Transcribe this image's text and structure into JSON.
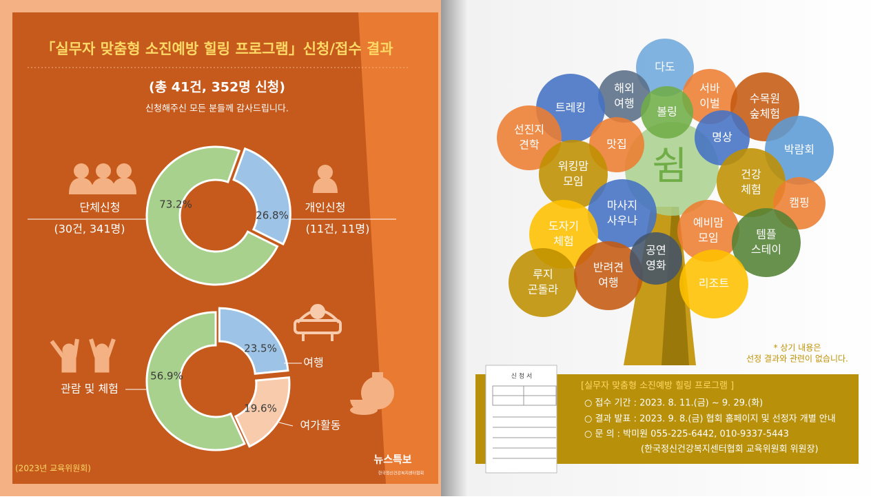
{
  "header": {
    "title": "「실무자 맞춤형 소진예방 힐링 프로그램」신청/접수 결과",
    "total": "(총 41건, 352명 신청)",
    "thanks": "신청해주신 모든 분들께 감사드립니다."
  },
  "chart_data": [
    {
      "type": "donut",
      "categories": [
        "개인신청",
        "단체신청"
      ],
      "values": [
        26.8,
        73.2
      ],
      "value_labels": [
        "26.8%",
        "73.2%"
      ],
      "notes": [
        "(11건, 11명)",
        "(30건, 341명)"
      ],
      "colors": [
        "#9dc3e6",
        "#a9d18e"
      ]
    },
    {
      "type": "donut",
      "categories": [
        "여행",
        "여가활동",
        "관람 및 체험"
      ],
      "values": [
        23.5,
        19.6,
        56.9
      ],
      "value_labels": [
        "23.5%",
        "19.6%",
        "56.9%"
      ],
      "colors": [
        "#9dc3e6",
        "#f8cbad",
        "#a9d18e"
      ]
    }
  ],
  "source": "(2023년 교육위원회)",
  "logo": {
    "name": "뉴스특보",
    "org": "한국정신건강복지센터협회"
  },
  "tree": {
    "center": "쉼",
    "bubbles": [
      {
        "lines": [
          "다도"
        ]
      },
      {
        "lines": [
          "해외",
          "여행"
        ]
      },
      {
        "lines": [
          "서바",
          "이벌"
        ]
      },
      {
        "lines": [
          "트레킹"
        ]
      },
      {
        "lines": [
          "수목원",
          "숲체험"
        ]
      },
      {
        "lines": [
          "볼링"
        ]
      },
      {
        "lines": [
          "선진지",
          "견학"
        ]
      },
      {
        "lines": [
          "맛집"
        ]
      },
      {
        "lines": [
          "명상"
        ]
      },
      {
        "lines": [
          "박람회"
        ]
      },
      {
        "lines": [
          "워킹맘",
          "모임"
        ]
      },
      {
        "lines": [
          "건강",
          "체험"
        ]
      },
      {
        "lines": [
          "캠핑"
        ]
      },
      {
        "lines": [
          "마사지",
          "사우나"
        ]
      },
      {
        "lines": [
          "예비맘",
          "모임"
        ]
      },
      {
        "lines": [
          "도자기",
          "체험"
        ]
      },
      {
        "lines": [
          "템플",
          "스테이"
        ]
      },
      {
        "lines": [
          "루지",
          "곤돌라"
        ]
      },
      {
        "lines": [
          "반려견",
          "여행"
        ]
      },
      {
        "lines": [
          "리조트"
        ]
      },
      {
        "lines": [
          "공연",
          "영화"
        ]
      }
    ]
  },
  "disclaimer": [
    "* 상기 내용은",
    "선정 결과와 관련이 없습니다."
  ],
  "form": {
    "title": "신 청 서"
  },
  "info": {
    "title": "[실무자 맞춤형 소진예방 힐링 프로그램 ]",
    "items": [
      "○ 접수 기간 : 2023. 8. 11.(금) ~ 9. 29.(화)",
      "○ 결과 발표 : 2023. 9. 8.(금) 협회 홈페이지 및 선정자 개별 안내",
      "○ 문       의 : 박미원 055-225-6442, 010-9337-5443",
      "(한국정신건강복지센터협회 교육위원회 위원장)"
    ]
  }
}
